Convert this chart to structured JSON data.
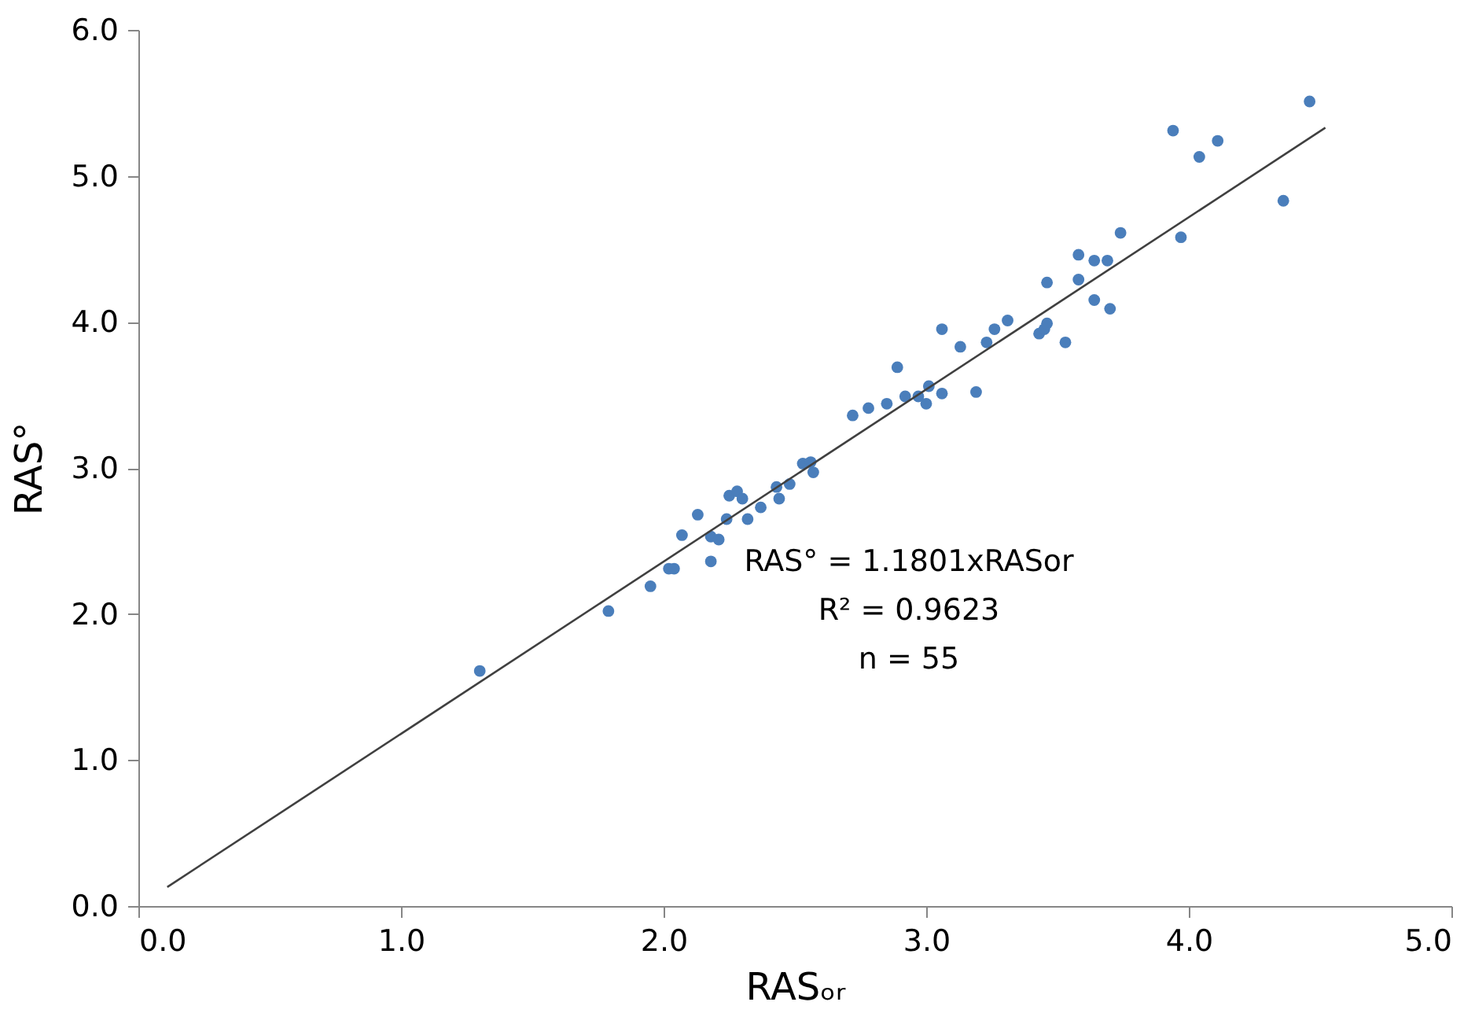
{
  "chart_data": {
    "type": "scatter",
    "xlabel": "RASₒᵣ",
    "ylabel": "RAS°",
    "xlim": [
      0,
      5
    ],
    "ylim": [
      0,
      6
    ],
    "xticks": [
      {
        "value": 0,
        "label": "0.0"
      },
      {
        "value": 1,
        "label": "1.0"
      },
      {
        "value": 2,
        "label": "2.0"
      },
      {
        "value": 3,
        "label": "3.0"
      },
      {
        "value": 4,
        "label": "4.0"
      },
      {
        "value": 5,
        "label": "5.0"
      }
    ],
    "yticks": [
      {
        "value": 0,
        "label": "0.0"
      },
      {
        "value": 1,
        "label": "1.0"
      },
      {
        "value": 2,
        "label": "2.0"
      },
      {
        "value": 3,
        "label": "3.0"
      },
      {
        "value": 4,
        "label": "4.0"
      },
      {
        "value": 5,
        "label": "5.0"
      },
      {
        "value": 6,
        "label": "6.0"
      }
    ],
    "grid": false,
    "series": [
      {
        "color": "#4a7ebb",
        "marker": "circle",
        "x": [
          1.3,
          1.79,
          1.95,
          2.02,
          2.04,
          2.07,
          2.13,
          2.18,
          2.18,
          2.21,
          2.24,
          2.25,
          2.28,
          2.3,
          2.32,
          2.37,
          2.43,
          2.44,
          2.48,
          2.53,
          2.56,
          2.57,
          2.72,
          2.78,
          2.85,
          2.89,
          2.92,
          2.97,
          3.0,
          3.01,
          3.06,
          3.06,
          3.13,
          3.19,
          3.23,
          3.26,
          3.31,
          3.43,
          3.45,
          3.46,
          3.53,
          3.46,
          3.58,
          3.58,
          3.64,
          3.64,
          3.69,
          3.7,
          3.74,
          3.94,
          3.97,
          4.04,
          4.11,
          4.36,
          4.46
        ],
        "values": [
          1.61,
          2.02,
          2.19,
          2.31,
          2.31,
          2.54,
          2.68,
          2.36,
          2.53,
          2.51,
          2.65,
          2.81,
          2.84,
          2.79,
          2.65,
          2.73,
          2.87,
          2.79,
          2.89,
          3.03,
          3.04,
          2.97,
          3.36,
          3.41,
          3.44,
          3.69,
          3.49,
          3.49,
          3.44,
          3.56,
          3.51,
          3.95,
          3.83,
          3.52,
          3.86,
          3.95,
          4.01,
          3.92,
          3.95,
          3.99,
          3.86,
          4.27,
          4.46,
          4.29,
          4.42,
          4.15,
          4.42,
          4.09,
          4.61,
          5.31,
          4.58,
          5.13,
          5.24,
          4.83,
          5.51
        ]
      },
      {
        "type": "line",
        "color": "#404040",
        "line_style": "solid",
        "x": [
          0.11,
          4.52
        ],
        "values": [
          0.13,
          5.33
        ]
      }
    ],
    "annotations": [
      "RAS° = 1.1801xRASor",
      "R² = 0.9623",
      "n = 55"
    ]
  }
}
